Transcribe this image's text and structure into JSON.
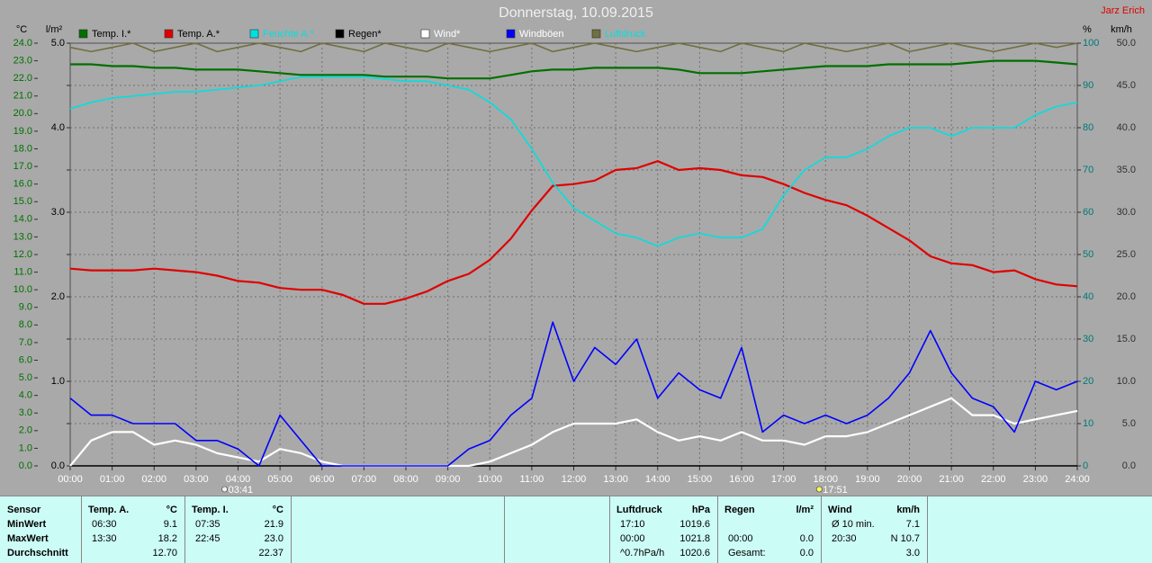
{
  "chart_data": {
    "type": "line",
    "title": "Donnerstag, 10.09.2015",
    "author": "Jarz Erich",
    "y_unit": "°C",
    "y2_unit": "%",
    "y3_unit": "l/m²",
    "y4_unit": "km/h",
    "grid": true,
    "x": [
      0,
      0.5,
      1,
      1.5,
      2,
      2.5,
      3,
      3.5,
      4,
      4.5,
      5,
      5.5,
      6,
      6.5,
      7,
      7.5,
      8,
      8.5,
      9,
      9.5,
      10,
      10.5,
      11,
      11.5,
      12,
      12.5,
      13,
      13.5,
      14,
      14.5,
      15,
      15.5,
      16,
      16.5,
      17,
      17.5,
      18,
      18.5,
      19,
      19.5,
      20,
      20.5,
      21,
      21.5,
      22,
      22.5,
      23,
      23.5,
      24
    ],
    "xlim": [
      0,
      24
    ],
    "xticks": [
      {
        "value": 0,
        "label": "00:00"
      },
      {
        "value": 1,
        "label": "01:00"
      },
      {
        "value": 2,
        "label": "02:00"
      },
      {
        "value": 3,
        "label": "03:00"
      },
      {
        "value": 4,
        "label": "04:00"
      },
      {
        "value": 5,
        "label": "05:00"
      },
      {
        "value": 6,
        "label": "06:00"
      },
      {
        "value": 7,
        "label": "07:00"
      },
      {
        "value": 8,
        "label": "08:00"
      },
      {
        "value": 9,
        "label": "09:00"
      },
      {
        "value": 10,
        "label": "10:00"
      },
      {
        "value": 11,
        "label": "11:00"
      },
      {
        "value": 12,
        "label": "12:00"
      },
      {
        "value": 13,
        "label": "13:00"
      },
      {
        "value": 14,
        "label": "14:00"
      },
      {
        "value": 15,
        "label": "15:00"
      },
      {
        "value": 16,
        "label": "16:00"
      },
      {
        "value": 17,
        "label": "17:00"
      },
      {
        "value": 18,
        "label": "18:00"
      },
      {
        "value": 19,
        "label": "19:00"
      },
      {
        "value": 20,
        "label": "20:00"
      },
      {
        "value": 21,
        "label": "21:00"
      },
      {
        "value": 22,
        "label": "22:00"
      },
      {
        "value": 23,
        "label": "23:00"
      },
      {
        "value": 24,
        "label": "24:00"
      }
    ],
    "ylim": [
      0,
      24
    ],
    "yticks": [
      {
        "value": 0,
        "label": "0.0"
      },
      {
        "value": 1,
        "label": "1.0"
      },
      {
        "value": 2,
        "label": "2.0"
      },
      {
        "value": 3,
        "label": "3.0"
      },
      {
        "value": 4,
        "label": "4.0"
      },
      {
        "value": 5,
        "label": "5.0"
      },
      {
        "value": 6,
        "label": "6.0"
      },
      {
        "value": 7,
        "label": "7.0"
      },
      {
        "value": 8,
        "label": "8.0"
      },
      {
        "value": 9,
        "label": "9.0"
      },
      {
        "value": 10,
        "label": "10.0"
      },
      {
        "value": 11,
        "label": "11.0"
      },
      {
        "value": 12,
        "label": "12.0"
      },
      {
        "value": 13,
        "label": "13.0"
      },
      {
        "value": 14,
        "label": "14.0"
      },
      {
        "value": 15,
        "label": "15.0"
      },
      {
        "value": 16,
        "label": "16.0"
      },
      {
        "value": 17,
        "label": "17.0"
      },
      {
        "value": 18,
        "label": "18.0"
      },
      {
        "value": 19,
        "label": "19.0"
      },
      {
        "value": 20,
        "label": "20.0"
      },
      {
        "value": 21,
        "label": "21.0"
      },
      {
        "value": 22,
        "label": "22.0"
      },
      {
        "value": 23,
        "label": "23.0"
      },
      {
        "value": 24,
        "label": "24.0"
      }
    ],
    "y2lim": [
      0,
      100
    ],
    "y2ticks": [
      0,
      10,
      20,
      30,
      40,
      50,
      60,
      70,
      80,
      90,
      100
    ],
    "y3lim": [
      0,
      5
    ],
    "y3ticks": [
      {
        "value": 0,
        "label": "0.0"
      },
      {
        "value": 1,
        "label": "1.0"
      },
      {
        "value": 2,
        "label": "2.0"
      },
      {
        "value": 3,
        "label": "3.0"
      },
      {
        "value": 4,
        "label": "4.0"
      },
      {
        "value": 5,
        "label": "5.0"
      }
    ],
    "y4lim": [
      0,
      50
    ],
    "y4ticks": [
      {
        "value": 0,
        "label": "0.0"
      },
      {
        "value": 5,
        "label": "5.0"
      },
      {
        "value": 10,
        "label": "10.0"
      },
      {
        "value": 15,
        "label": "15.0"
      },
      {
        "value": 20,
        "label": "20.0"
      },
      {
        "value": 25,
        "label": "25.0"
      },
      {
        "value": 30,
        "label": "30.0"
      },
      {
        "value": 35,
        "label": "35.0"
      },
      {
        "value": 40,
        "label": "40.0"
      },
      {
        "value": 45,
        "label": "45.0"
      },
      {
        "value": 50,
        "label": "50.0"
      }
    ],
    "sun_markers": [
      {
        "value": 3.68,
        "label": "03:41"
      },
      {
        "value": 17.85,
        "label": "17:51"
      }
    ],
    "series": [
      {
        "name": "Temp. I.*",
        "color": "#007000",
        "axis": "y",
        "values": [
          22.8,
          22.8,
          22.7,
          22.7,
          22.6,
          22.6,
          22.5,
          22.5,
          22.5,
          22.4,
          22.3,
          22.2,
          22.2,
          22.2,
          22.2,
          22.1,
          22.1,
          22.1,
          22.0,
          22.0,
          22.0,
          22.2,
          22.4,
          22.5,
          22.5,
          22.6,
          22.6,
          22.6,
          22.6,
          22.5,
          22.3,
          22.3,
          22.3,
          22.4,
          22.5,
          22.6,
          22.7,
          22.7,
          22.7,
          22.8,
          22.8,
          22.8,
          22.8,
          22.9,
          23.0,
          23.0,
          23.0,
          22.9,
          22.8
        ]
      },
      {
        "name": "Temp. A.*",
        "color": "#e00000",
        "axis": "y",
        "values": [
          11.2,
          11.1,
          11.1,
          11.1,
          11.2,
          11.1,
          11.0,
          10.8,
          10.5,
          10.4,
          10.1,
          10.0,
          10.0,
          9.7,
          9.2,
          9.2,
          9.5,
          9.9,
          10.5,
          10.9,
          11.7,
          12.9,
          14.5,
          15.9,
          16.0,
          16.2,
          16.8,
          16.9,
          17.3,
          16.8,
          16.9,
          16.8,
          16.5,
          16.4,
          16.0,
          15.5,
          15.1,
          14.8,
          14.2,
          13.5,
          12.8,
          11.9,
          11.5,
          11.4,
          11.0,
          11.1,
          10.6,
          10.3,
          10.2
        ]
      },
      {
        "name": "Feuchte A.*",
        "color": "#00e0e0",
        "axis": "y2",
        "values": [
          84.5,
          86,
          87,
          87.5,
          88,
          88.5,
          88.5,
          89,
          89.5,
          90,
          91,
          92,
          92,
          92,
          92,
          91.5,
          91,
          91,
          90,
          89,
          86,
          82,
          75,
          67,
          61,
          58,
          55,
          54,
          52,
          54,
          55,
          54,
          54,
          56,
          64,
          70,
          73,
          73,
          75,
          78,
          80,
          80,
          78,
          80,
          80,
          80,
          83,
          85,
          86
        ]
      },
      {
        "name": "Regen*",
        "color": "#000000",
        "axis": "y3",
        "values": [
          0,
          0,
          0,
          0,
          0,
          0,
          0,
          0,
          0,
          0,
          0,
          0,
          0,
          0,
          0,
          0,
          0,
          0,
          0,
          0,
          0,
          0,
          0,
          0,
          0,
          0,
          0,
          0,
          0,
          0,
          0,
          0,
          0,
          0,
          0,
          0,
          0,
          0,
          0,
          0,
          0,
          0,
          0,
          0,
          0,
          0,
          0,
          0,
          0
        ]
      },
      {
        "name": "Wind*",
        "color": "#ffffff",
        "axis": "y4",
        "values": [
          0,
          3,
          4,
          4,
          2.5,
          3,
          2.5,
          1.5,
          1,
          0.5,
          2,
          1.5,
          0.5,
          0,
          0,
          0,
          0,
          0,
          0,
          0,
          0.5,
          1.5,
          2.5,
          4,
          5,
          5,
          5,
          5.5,
          4,
          3,
          3.5,
          3,
          4,
          3,
          3,
          2.5,
          3.5,
          3.5,
          4,
          5,
          6,
          7,
          8,
          6,
          6,
          5,
          5.5,
          6,
          6.5
        ]
      },
      {
        "name": "Windböen",
        "color": "#0000ff",
        "axis": "y4",
        "values": [
          8,
          6,
          6,
          5,
          5,
          5,
          3,
          3,
          2,
          0,
          6,
          3,
          0,
          0,
          0,
          0,
          0,
          0,
          0,
          2,
          3,
          6,
          8,
          17,
          10,
          14,
          12,
          15,
          8,
          11,
          9,
          8,
          14,
          4,
          6,
          5,
          6,
          5,
          6,
          8,
          11,
          16,
          11,
          8,
          7,
          4,
          10,
          9,
          10
        ]
      },
      {
        "name": "Luftdruck",
        "color": "#707040",
        "axis": "y2",
        "values": [
          99,
          98,
          99,
          100,
          98,
          99,
          100,
          98,
          99,
          100,
          99,
          98,
          100,
          99,
          98,
          100,
          99,
          98,
          100,
          99,
          98,
          99,
          100,
          98,
          99,
          100,
          99,
          98,
          99,
          100,
          99,
          98,
          100,
          99,
          98,
          100,
          99,
          98,
          99,
          100,
          98,
          99,
          100,
          99,
          98,
          99,
          100,
          99,
          100
        ]
      }
    ]
  },
  "table": {
    "panels": [
      {
        "header": [
          "Sensor"
        ],
        "rows": [
          [
            "MinWert"
          ],
          [
            "MaxWert"
          ],
          [
            "Durchschnitt"
          ]
        ]
      },
      {
        "header": [
          "Temp. A.",
          "°C"
        ],
        "rows": [
          [
            "06:30",
            "9.1"
          ],
          [
            "13:30",
            "18.2"
          ],
          [
            null,
            "12.70"
          ]
        ]
      },
      {
        "header": [
          "Temp. I.",
          "°C"
        ],
        "rows": [
          [
            "07:35",
            "21.9"
          ],
          [
            "22:45",
            "23.0"
          ],
          [
            null,
            "22.37"
          ]
        ]
      },
      {
        "header": [
          "Luftdruck",
          "hPa"
        ],
        "rows": [
          [
            "17:10",
            "1019.6"
          ],
          [
            "00:00",
            "1021.8"
          ],
          [
            "^0.7hPa/h",
            "1020.6"
          ]
        ]
      },
      {
        "header": [
          "Regen",
          "l/m²"
        ],
        "rows": [
          [
            null,
            null
          ],
          [
            "00:00",
            "0.0"
          ],
          [
            "Gesamt:",
            "0.0"
          ]
        ]
      },
      {
        "header": [
          "Wind",
          "km/h"
        ],
        "rows": [
          [
            "Ø 10 min.",
            "7.1"
          ],
          [
            "20:30",
            "N 10.7"
          ],
          [
            null,
            "3.0"
          ]
        ]
      }
    ]
  }
}
